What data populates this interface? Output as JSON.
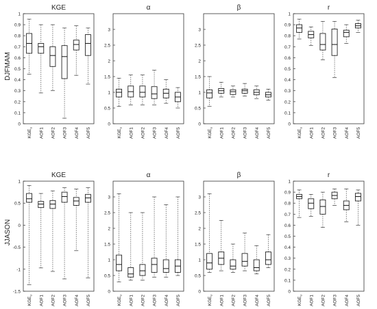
{
  "row_labels": [
    "DJFMAM",
    "JJASON"
  ],
  "categories": [
    "KGEu",
    "AOF1",
    "AOF2",
    "AOF3",
    "AOF4",
    "AOF5"
  ],
  "chart_data": [
    {
      "type": "box",
      "row": "DJFMAM",
      "title": "KGE",
      "ylim": [
        0,
        1
      ],
      "yticks": [
        "0",
        "0.1",
        "0.2",
        "0.3",
        "0.4",
        "0.5",
        "0.6",
        "0.7",
        "0.8",
        "0.9",
        "1"
      ],
      "categories": [
        "KGEu",
        "AOF1",
        "AOF2",
        "AOF3",
        "AOF4",
        "AOF5"
      ],
      "boxes": [
        {
          "whislo": 0.45,
          "q1": 0.64,
          "med": 0.73,
          "q3": 0.82,
          "whishi": 0.95
        },
        {
          "whislo": 0.28,
          "q1": 0.64,
          "med": 0.7,
          "q3": 0.73,
          "whishi": 0.9
        },
        {
          "whislo": 0.3,
          "q1": 0.52,
          "med": 0.62,
          "q3": 0.7,
          "whishi": 0.9
        },
        {
          "whislo": 0.05,
          "q1": 0.41,
          "med": 0.61,
          "q3": 0.71,
          "whishi": 0.87
        },
        {
          "whislo": 0.44,
          "q1": 0.67,
          "med": 0.72,
          "q3": 0.76,
          "whishi": 0.89
        },
        {
          "whislo": 0.36,
          "q1": 0.62,
          "med": 0.73,
          "q3": 0.81,
          "whishi": 0.87
        }
      ]
    },
    {
      "type": "box",
      "row": "DJFMAM",
      "title": "α",
      "ylim": [
        0,
        3.5
      ],
      "yticks": [
        "0",
        "0.5",
        "1",
        "1.5",
        "2",
        "2.5",
        "3"
      ],
      "categories": [
        "KGEu",
        "AOF1",
        "AOF2",
        "AOF3",
        "AOF4",
        "AOF5"
      ],
      "boxes": [
        {
          "whislo": 0.55,
          "q1": 0.85,
          "med": 1.0,
          "q3": 1.1,
          "whishi": 1.45
        },
        {
          "whislo": 0.6,
          "q1": 0.85,
          "med": 1.02,
          "q3": 1.2,
          "whishi": 1.55
        },
        {
          "whislo": 0.6,
          "q1": 0.85,
          "med": 1.0,
          "q3": 1.2,
          "whishi": 1.55
        },
        {
          "whislo": 0.6,
          "q1": 0.8,
          "med": 0.95,
          "q3": 1.18,
          "whishi": 1.7
        },
        {
          "whislo": 0.65,
          "q1": 0.82,
          "med": 0.97,
          "q3": 1.1,
          "whishi": 1.4
        },
        {
          "whislo": 0.5,
          "q1": 0.7,
          "med": 0.85,
          "q3": 1.0,
          "whishi": 1.15
        }
      ]
    },
    {
      "type": "box",
      "row": "DJFMAM",
      "title": "β",
      "ylim": [
        0,
        3.5
      ],
      "yticks": [
        "0",
        "0.5",
        "1",
        "1.5",
        "2",
        "2.5",
        "3"
      ],
      "categories": [
        "KGEu",
        "AOF1",
        "AOF2",
        "AOF3",
        "AOF4",
        "AOF5"
      ],
      "boxes": [
        {
          "whislo": 0.55,
          "q1": 0.82,
          "med": 0.98,
          "q3": 1.08,
          "whishi": 1.5
        },
        {
          "whislo": 0.85,
          "q1": 0.97,
          "med": 1.05,
          "q3": 1.12,
          "whishi": 1.32
        },
        {
          "whislo": 0.85,
          "q1": 0.93,
          "med": 1.02,
          "q3": 1.08,
          "whishi": 1.2
        },
        {
          "whislo": 0.88,
          "q1": 0.97,
          "med": 1.05,
          "q3": 1.1,
          "whishi": 1.28
        },
        {
          "whislo": 0.8,
          "q1": 0.92,
          "med": 1.0,
          "q3": 1.08,
          "whishi": 1.2
        },
        {
          "whislo": 0.75,
          "q1": 0.85,
          "med": 0.92,
          "q3": 1.0,
          "whishi": 1.1
        }
      ]
    },
    {
      "type": "box",
      "row": "DJFMAM",
      "title": "r",
      "ylim": [
        0,
        1
      ],
      "yticks": [
        "0",
        "0.1",
        "0.2",
        "0.3",
        "0.4",
        "0.5",
        "0.6",
        "0.7",
        "0.8",
        "0.9",
        "1"
      ],
      "categories": [
        "KGEu",
        "AOF1",
        "AOF2",
        "AOF3",
        "AOF4",
        "AOF5"
      ],
      "boxes": [
        {
          "whislo": 0.77,
          "q1": 0.83,
          "med": 0.87,
          "q3": 0.9,
          "whishi": 0.95
        },
        {
          "whislo": 0.71,
          "q1": 0.78,
          "med": 0.81,
          "q3": 0.84,
          "whishi": 0.88
        },
        {
          "whislo": 0.58,
          "q1": 0.67,
          "med": 0.72,
          "q3": 0.82,
          "whishi": 0.93
        },
        {
          "whislo": 0.42,
          "q1": 0.62,
          "med": 0.72,
          "q3": 0.86,
          "whishi": 0.93
        },
        {
          "whislo": 0.73,
          "q1": 0.79,
          "med": 0.83,
          "q3": 0.85,
          "whishi": 0.9
        },
        {
          "whislo": 0.83,
          "q1": 0.87,
          "med": 0.89,
          "q3": 0.91,
          "whishi": 0.94
        }
      ]
    },
    {
      "type": "box",
      "row": "JJASON",
      "title": "KGE",
      "ylim": [
        -1.5,
        1
      ],
      "yticks": [
        "-1.5",
        "-1",
        "-0.5",
        "0",
        "0.5",
        "1"
      ],
      "categories": [
        "KGEu",
        "AOF1",
        "AOF2",
        "AOF3",
        "AOF4",
        "AOF5"
      ],
      "boxes": [
        {
          "whislo": -1.35,
          "q1": 0.52,
          "med": 0.6,
          "q3": 0.72,
          "whishi": 0.9
        },
        {
          "whislo": -0.97,
          "q1": 0.4,
          "med": 0.48,
          "q3": 0.54,
          "whishi": 0.72
        },
        {
          "whislo": -1.05,
          "q1": 0.38,
          "med": 0.48,
          "q3": 0.56,
          "whishi": 0.78
        },
        {
          "whislo": -1.22,
          "q1": 0.52,
          "med": 0.65,
          "q3": 0.75,
          "whishi": 0.85
        },
        {
          "whislo": -0.58,
          "q1": 0.45,
          "med": 0.55,
          "q3": 0.63,
          "whishi": 0.82
        },
        {
          "whislo": -1.2,
          "q1": 0.52,
          "med": 0.62,
          "q3": 0.7,
          "whishi": 0.85
        }
      ]
    },
    {
      "type": "box",
      "row": "JJASON",
      "title": "α",
      "ylim": [
        0,
        3.5
      ],
      "yticks": [
        "0",
        "0.5",
        "1",
        "1.5",
        "2",
        "2.5",
        "3"
      ],
      "categories": [
        "KGEu",
        "AOF1",
        "AOF2",
        "AOF3",
        "AOF4",
        "AOF5"
      ],
      "boxes": [
        {
          "whislo": 0.3,
          "q1": 0.65,
          "med": 0.85,
          "q3": 1.15,
          "whishi": 3.1
        },
        {
          "whislo": 0.35,
          "q1": 0.45,
          "med": 0.55,
          "q3": 0.75,
          "whishi": 2.5
        },
        {
          "whislo": 0.35,
          "q1": 0.5,
          "med": 0.65,
          "q3": 0.85,
          "whishi": 2.5
        },
        {
          "whislo": 0.45,
          "q1": 0.6,
          "med": 0.85,
          "q3": 1.05,
          "whishi": 3.0
        },
        {
          "whislo": 0.45,
          "q1": 0.6,
          "med": 0.72,
          "q3": 1.0,
          "whishi": 2.75
        },
        {
          "whislo": 0.5,
          "q1": 0.6,
          "med": 0.8,
          "q3": 1.0,
          "whishi": 3.0
        }
      ]
    },
    {
      "type": "box",
      "row": "JJASON",
      "title": "β",
      "ylim": [
        0,
        3.5
      ],
      "yticks": [
        "0",
        "0.5",
        "1",
        "1.5",
        "2",
        "2.5",
        "3"
      ],
      "categories": [
        "KGEu",
        "AOF1",
        "AOF2",
        "AOF3",
        "AOF4",
        "AOF5"
      ],
      "boxes": [
        {
          "whislo": 0.6,
          "q1": 0.7,
          "med": 0.9,
          "q3": 1.2,
          "whishi": 3.1
        },
        {
          "whislo": 0.65,
          "q1": 0.85,
          "med": 1.05,
          "q3": 1.25,
          "whishi": 2.25
        },
        {
          "whislo": 0.6,
          "q1": 0.7,
          "med": 0.8,
          "q3": 1.0,
          "whishi": 1.5
        },
        {
          "whislo": 0.65,
          "q1": 0.8,
          "med": 0.95,
          "q3": 1.2,
          "whishi": 1.85
        },
        {
          "whislo": 0.55,
          "q1": 0.65,
          "med": 0.75,
          "q3": 1.0,
          "whishi": 1.45
        },
        {
          "whislo": 0.75,
          "q1": 0.85,
          "med": 1.0,
          "q3": 1.25,
          "whishi": 1.8
        }
      ]
    },
    {
      "type": "box",
      "row": "JJASON",
      "title": "r",
      "ylim": [
        0,
        1
      ],
      "yticks": [
        "0",
        "0.1",
        "0.2",
        "0.3",
        "0.4",
        "0.5",
        "0.6",
        "0.7",
        "0.8",
        "0.9",
        "1"
      ],
      "categories": [
        "KGEu",
        "AOF1",
        "AOF2",
        "AOF3",
        "AOF4",
        "AOF5"
      ],
      "boxes": [
        {
          "whislo": 0.67,
          "q1": 0.84,
          "med": 0.86,
          "q3": 0.88,
          "whishi": 0.92
        },
        {
          "whislo": 0.68,
          "q1": 0.75,
          "med": 0.8,
          "q3": 0.84,
          "whishi": 0.88
        },
        {
          "whislo": 0.58,
          "q1": 0.7,
          "med": 0.77,
          "q3": 0.83,
          "whishi": 0.9
        },
        {
          "whislo": 0.78,
          "q1": 0.84,
          "med": 0.87,
          "q3": 0.9,
          "whishi": 0.93
        },
        {
          "whislo": 0.63,
          "q1": 0.74,
          "med": 0.78,
          "q3": 0.82,
          "whishi": 0.93
        },
        {
          "whislo": 0.6,
          "q1": 0.82,
          "med": 0.86,
          "q3": 0.89,
          "whishi": 0.92
        }
      ]
    }
  ]
}
